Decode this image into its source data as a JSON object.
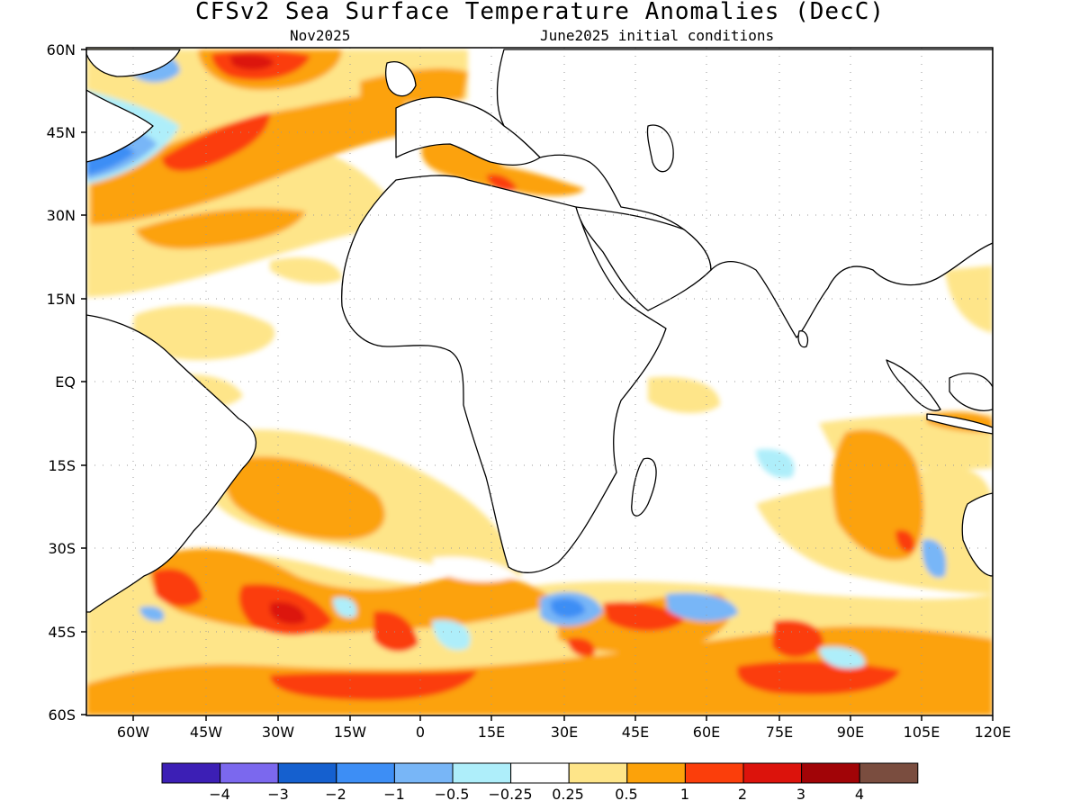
{
  "header": {
    "title": "CFSv2 Sea Surface Temperature Anomalies (DecC)",
    "valid": "Nov2025",
    "init": "June2025 initial conditions"
  },
  "axes": {
    "lat_labels": [
      "60N",
      "45N",
      "30N",
      "15N",
      "EQ",
      "15S",
      "30S",
      "45S",
      "60S"
    ],
    "lon_labels": [
      "60W",
      "45W",
      "30W",
      "15W",
      "0",
      "15E",
      "30E",
      "45E",
      "60E",
      "75E",
      "90E",
      "105E",
      "120E"
    ]
  },
  "colorbar": {
    "colors": [
      "#3c1fb5",
      "#7b68ee",
      "#1560cf",
      "#3d8ef5",
      "#78b6f7",
      "#aeeefa",
      "#ffffff",
      "#fee589",
      "#fca20a",
      "#fb3e0b",
      "#dc130c",
      "#a10407",
      "#7a4d3f"
    ],
    "labels": [
      "−4",
      "−3",
      "−2",
      "−1",
      "−0.5",
      "−0.25",
      "0.25",
      "0.5",
      "1",
      "2",
      "3",
      "4"
    ]
  },
  "colors": {
    "warm_light": "#fee589",
    "warm_orange": "#fca20a",
    "warm_red": "#fb3e0b",
    "warm_dark": "#dc130c",
    "cool_pale": "#aeeefa",
    "cool_light": "#78b6f7",
    "cool_mid": "#3d8ef5",
    "land_outline": "#000000"
  }
}
